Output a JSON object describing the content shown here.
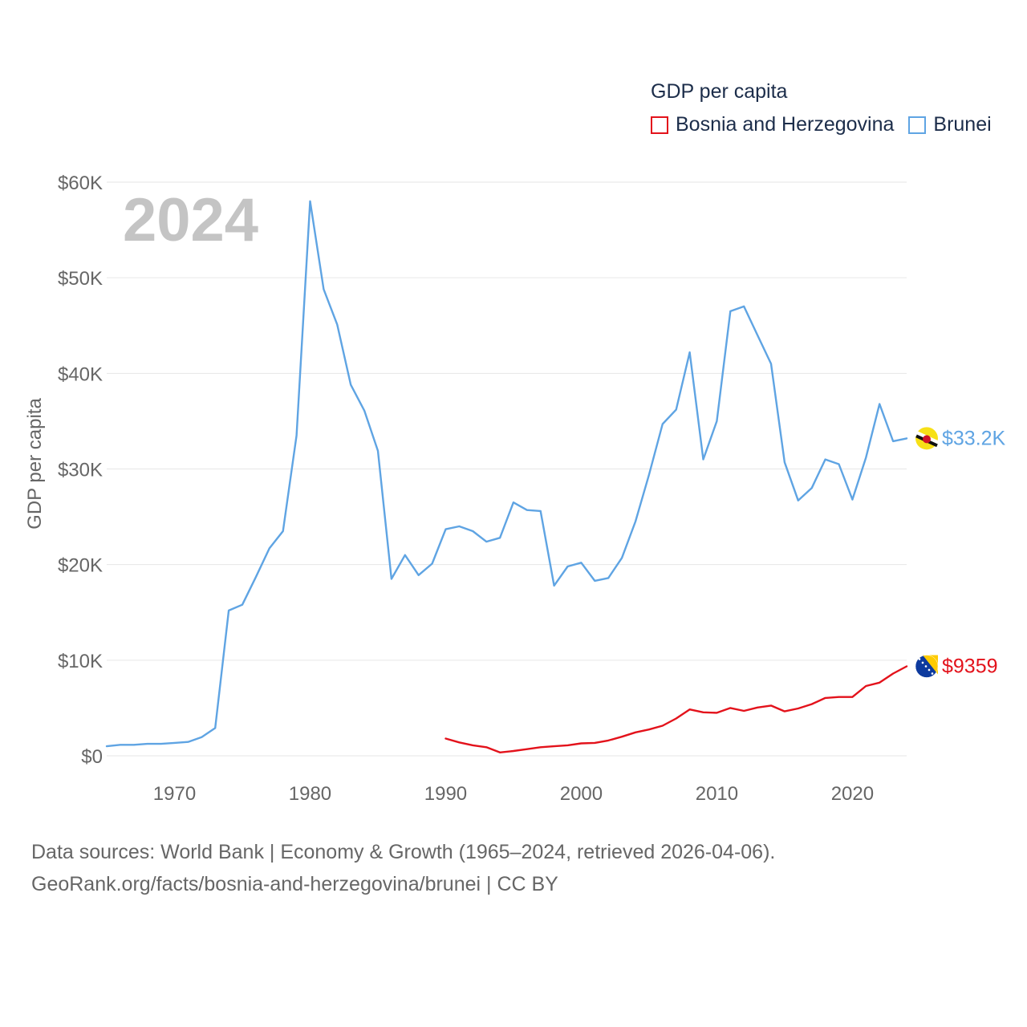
{
  "colors": {
    "bosnia": "#e3121b",
    "brunei": "#5fa4e3",
    "grid": "#e6e6e6",
    "axis_text": "#666666",
    "year_watermark": "#c4c4c4"
  },
  "legend": {
    "title": "GDP per capita",
    "items": [
      {
        "label": "Bosnia and Herzegovina",
        "color": "#e3121b"
      },
      {
        "label": "Brunei",
        "color": "#5fa4e3"
      }
    ]
  },
  "footer": {
    "line1": "Data sources: World Bank | Economy & Growth (1965–2024, retrieved 2026-04-06).",
    "line2": "GeoRank.org/facts/bosnia-and-herzegovina/brunei | CC BY"
  },
  "chart_data": {
    "type": "line",
    "year_label": "2024",
    "ylabel": "GDP per capita",
    "xlim": [
      1965,
      2024
    ],
    "ylim": [
      0,
      60000
    ],
    "x_ticks": [
      1970,
      1980,
      1990,
      2000,
      2010,
      2020
    ],
    "y_ticks": [
      {
        "value": 0,
        "label": "$0"
      },
      {
        "value": 10000,
        "label": "$10K"
      },
      {
        "value": 20000,
        "label": "$20K"
      },
      {
        "value": 30000,
        "label": "$30K"
      },
      {
        "value": 40000,
        "label": "$40K"
      },
      {
        "value": 50000,
        "label": "$50K"
      },
      {
        "value": 60000,
        "label": "$60K"
      }
    ],
    "series": [
      {
        "name": "Brunei",
        "color": "#5fa4e3",
        "end_label": "$33.2K",
        "x": [
          1965,
          1966,
          1967,
          1968,
          1969,
          1970,
          1971,
          1972,
          1973,
          1974,
          1975,
          1976,
          1977,
          1978,
          1979,
          1980,
          1981,
          1982,
          1983,
          1984,
          1985,
          1986,
          1987,
          1988,
          1989,
          1990,
          1991,
          1992,
          1993,
          1994,
          1995,
          1996,
          1997,
          1998,
          1999,
          2000,
          2001,
          2002,
          2003,
          2004,
          2005,
          2006,
          2007,
          2008,
          2009,
          2010,
          2011,
          2012,
          2013,
          2014,
          2015,
          2016,
          2017,
          2018,
          2019,
          2020,
          2021,
          2022,
          2023,
          2024
        ],
        "values": [
          1000,
          1150,
          1150,
          1250,
          1250,
          1350,
          1450,
          1950,
          2900,
          15200,
          15800,
          18700,
          21700,
          23500,
          33500,
          58000,
          48800,
          45100,
          38800,
          36100,
          31900,
          18500,
          21000,
          18900,
          20100,
          23700,
          24000,
          23500,
          22400,
          22800,
          26500,
          25700,
          25600,
          17800,
          19800,
          20200,
          18300,
          18600,
          20700,
          24500,
          29400,
          34700,
          36200,
          42200,
          31000,
          35000,
          46500,
          47000,
          44000,
          41000,
          30700,
          26700,
          28000,
          31000,
          30500,
          26800,
          31200,
          36800,
          32900,
          33200
        ]
      },
      {
        "name": "Bosnia and Herzegovina",
        "color": "#e3121b",
        "end_label": "$9359",
        "x": [
          1990,
          1991,
          1992,
          1993,
          1994,
          1995,
          1996,
          1997,
          1998,
          1999,
          2000,
          2001,
          2002,
          2003,
          2004,
          2005,
          2006,
          2007,
          2008,
          2009,
          2010,
          2011,
          2012,
          2013,
          2014,
          2015,
          2016,
          2017,
          2018,
          2019,
          2020,
          2021,
          2022,
          2023,
          2024
        ],
        "values": [
          1800,
          1400,
          1100,
          900,
          350,
          500,
          700,
          900,
          1000,
          1100,
          1300,
          1350,
          1600,
          2000,
          2450,
          2750,
          3150,
          3900,
          4850,
          4550,
          4500,
          5000,
          4700,
          5050,
          5250,
          4650,
          4950,
          5400,
          6050,
          6150,
          6150,
          7300,
          7650,
          8600,
          9359
        ]
      }
    ]
  }
}
